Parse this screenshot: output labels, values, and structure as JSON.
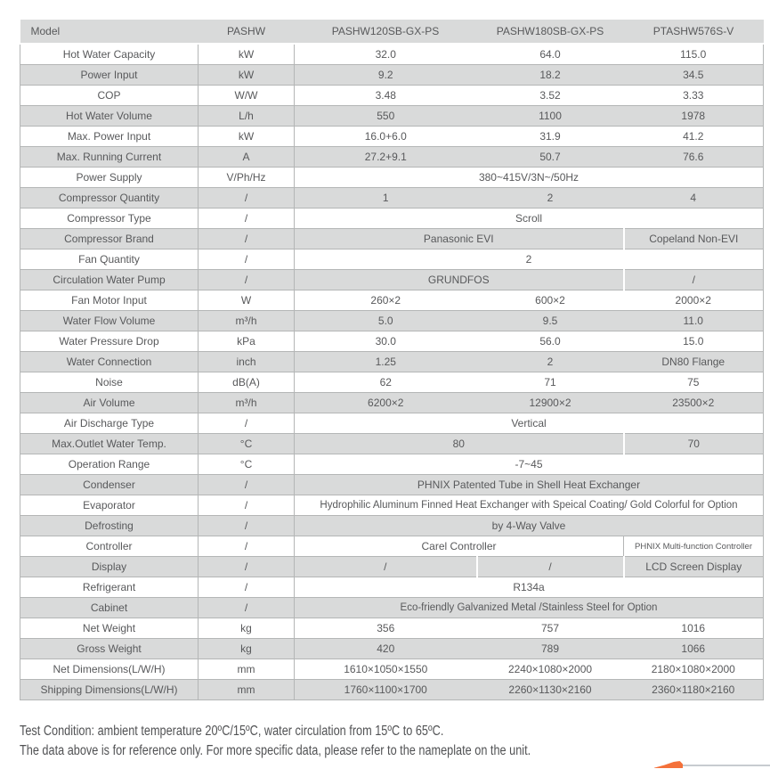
{
  "colors": {
    "row_gray": "#d9dada",
    "border_gray": "#b4b6b6",
    "text_gray": "#58595b",
    "accent_orange": "#f4713a",
    "corner_line_gray": "#c7ccd0"
  },
  "table": {
    "header": {
      "col1": "Model",
      "col2": "PASHW",
      "col3": "PASHW120SB-GX-PS",
      "col4": "PASHW180SB-GX-PS",
      "col5": "PTASHW576S-V"
    },
    "rows": [
      {
        "label": "Hot Water Capacity",
        "unit": "kW",
        "layout": "three",
        "values": [
          "32.0",
          "64.0",
          "115.0"
        ]
      },
      {
        "label": "Power Input",
        "unit": "kW",
        "layout": "three",
        "values": [
          "9.2",
          "18.2",
          "34.5"
        ]
      },
      {
        "label": "COP",
        "unit": "W/W",
        "layout": "three",
        "values": [
          "3.48",
          "3.52",
          "3.33"
        ]
      },
      {
        "label": "Hot Water Volume",
        "unit": "L/h",
        "layout": "three",
        "values": [
          "550",
          "1100",
          "1978"
        ]
      },
      {
        "label": "Max. Power Input",
        "unit": "kW",
        "layout": "three",
        "values": [
          "16.0+6.0",
          "31.9",
          "41.2"
        ]
      },
      {
        "label": "Max. Running Current",
        "unit": "A",
        "layout": "three",
        "values": [
          "27.2+9.1",
          "50.7",
          "76.6"
        ]
      },
      {
        "label": "Power Supply",
        "unit": "V/Ph/Hz",
        "layout": "span3",
        "values": [
          "380~415V/3N~/50Hz"
        ]
      },
      {
        "label": "Compressor Quantity",
        "unit": "/",
        "layout": "three",
        "values": [
          "1",
          "2",
          "4"
        ]
      },
      {
        "label": "Compressor Type",
        "unit": "/",
        "layout": "span3",
        "values": [
          "Scroll"
        ]
      },
      {
        "label": "Compressor Brand",
        "unit": "/",
        "layout": "two_one",
        "values": [
          "Panasonic EVI",
          "Copeland Non-EVI"
        ]
      },
      {
        "label": "Fan Quantity",
        "unit": "/",
        "layout": "span3",
        "values": [
          "2"
        ]
      },
      {
        "label": "Circulation Water Pump",
        "unit": "/",
        "layout": "two_one",
        "values": [
          "GRUNDFOS",
          "/"
        ]
      },
      {
        "label": "Fan Motor Input",
        "unit": "W",
        "layout": "three",
        "values": [
          "260×2",
          "600×2",
          "2000×2"
        ]
      },
      {
        "label": "Water Flow Volume",
        "unit": "m³/h",
        "layout": "three",
        "values": [
          "5.0",
          "9.5",
          "11.0"
        ]
      },
      {
        "label": "Water Pressure Drop",
        "unit": "kPa",
        "layout": "three",
        "values": [
          "30.0",
          "56.0",
          "15.0"
        ]
      },
      {
        "label": "Water Connection",
        "unit": "inch",
        "layout": "three",
        "values": [
          "1.25",
          "2",
          "DN80 Flange"
        ]
      },
      {
        "label": "Noise",
        "unit": "dB(A)",
        "layout": "three",
        "values": [
          "62",
          "71",
          "75"
        ]
      },
      {
        "label": "Air Volume",
        "unit": "m³/h",
        "layout": "three",
        "values": [
          "6200×2",
          "12900×2",
          "23500×2"
        ]
      },
      {
        "label": "Air Discharge Type",
        "unit": "/",
        "layout": "span3",
        "values": [
          "Vertical"
        ]
      },
      {
        "label": "Max.Outlet Water Temp.",
        "unit": "°C",
        "layout": "two_one",
        "values": [
          "80",
          "70"
        ]
      },
      {
        "label": "Operation Range",
        "unit": "°C",
        "layout": "span3",
        "values": [
          "-7~45"
        ]
      },
      {
        "label": "Condenser",
        "unit": "/",
        "layout": "span3",
        "values": [
          "PHNIX Patented Tube in Shell Heat Exchanger"
        ]
      },
      {
        "label": "Evaporator",
        "unit": "/",
        "layout": "span3",
        "values": [
          "Hydrophilic Aluminum Finned Heat Exchanger with Speical Coating/ Gold Colorful for Option"
        ]
      },
      {
        "label": "Defrosting",
        "unit": "/",
        "layout": "span3",
        "values": [
          "by 4-Way Valve"
        ]
      },
      {
        "label": "Controller",
        "unit": "/",
        "layout": "two_one",
        "values": [
          "Carel Controller",
          "PHNIX Multi-function Controller"
        ],
        "small_last": true
      },
      {
        "label": "Display",
        "unit": "/",
        "layout": "three_divided",
        "values": [
          "/",
          "/",
          "LCD Screen Display"
        ]
      },
      {
        "label": "Refrigerant",
        "unit": "/",
        "layout": "span3",
        "values": [
          "R134a"
        ]
      },
      {
        "label": "Cabinet",
        "unit": "/",
        "layout": "span3",
        "values": [
          "Eco-friendly Galvanized Metal /Stainless Steel for Option"
        ]
      },
      {
        "label": "Net Weight",
        "unit": "kg",
        "layout": "three",
        "values": [
          "356",
          "757",
          "1016"
        ]
      },
      {
        "label": "Gross Weight",
        "unit": "kg",
        "layout": "three",
        "values": [
          "420",
          "789",
          "1066"
        ]
      },
      {
        "label": "Net Dimensions(L/W/H)",
        "unit": "mm",
        "layout": "three",
        "values": [
          "1610×1050×1550",
          "2240×1080×2000",
          "2180×1080×2000"
        ]
      },
      {
        "label": "Shipping Dimensions(L/W/H)",
        "unit": "mm",
        "layout": "three",
        "values": [
          "1760×1100×1700",
          "2260×1130×2160",
          "2360×1180×2160"
        ]
      }
    ]
  },
  "footer": {
    "line1": "Test Condition: ambient temperature 20ºC/15ºC, water circulation from 15ºC to 65ºC.",
    "line2": "The data above is for reference only. For more specific data,  please refer to the nameplate on the unit."
  }
}
